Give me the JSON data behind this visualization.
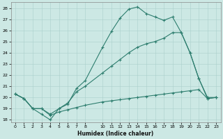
{
  "xlabel": "Humidex (Indice chaleur)",
  "ylabel": "",
  "background_color": "#cce8e4",
  "line_color": "#2d7d6e",
  "grid_color": "#aacfcb",
  "xlim": [
    -0.5,
    23.5
  ],
  "ylim": [
    17.8,
    28.5
  ],
  "xticks": [
    0,
    1,
    2,
    3,
    4,
    5,
    6,
    7,
    8,
    10,
    11,
    12,
    13,
    14,
    15,
    16,
    17,
    18,
    19,
    20,
    21,
    22,
    23
  ],
  "yticks": [
    18,
    19,
    20,
    21,
    22,
    23,
    24,
    25,
    26,
    27,
    28
  ],
  "line1_x": [
    0,
    1,
    2,
    3,
    4,
    5,
    6,
    7,
    8,
    10,
    11,
    12,
    13,
    14,
    15,
    16,
    17,
    18,
    19,
    20,
    21,
    22,
    23
  ],
  "line1_y": [
    20.3,
    19.9,
    19.0,
    18.5,
    18.0,
    19.0,
    19.4,
    20.8,
    21.5,
    24.5,
    25.9,
    27.1,
    27.9,
    28.1,
    27.5,
    27.2,
    26.9,
    27.2,
    25.8,
    24.0,
    21.7,
    19.9,
    20.0
  ],
  "line2_x": [
    0,
    1,
    2,
    3,
    4,
    5,
    6,
    7,
    8,
    10,
    11,
    12,
    13,
    14,
    15,
    16,
    17,
    18,
    19,
    20,
    21,
    22,
    23
  ],
  "line2_y": [
    20.3,
    19.9,
    19.0,
    19.0,
    18.5,
    19.0,
    19.5,
    20.5,
    21.0,
    22.2,
    22.8,
    23.4,
    24.0,
    24.5,
    24.8,
    25.0,
    25.3,
    25.8,
    25.8,
    24.0,
    21.7,
    20.0,
    20.0
  ],
  "line3_x": [
    0,
    1,
    2,
    3,
    4,
    5,
    6,
    7,
    8,
    10,
    11,
    12,
    13,
    14,
    15,
    16,
    17,
    18,
    19,
    20,
    21,
    22,
    23
  ],
  "line3_y": [
    20.3,
    19.9,
    19.0,
    19.0,
    18.4,
    18.7,
    18.9,
    19.1,
    19.3,
    19.6,
    19.7,
    19.8,
    19.9,
    20.0,
    20.1,
    20.2,
    20.3,
    20.4,
    20.5,
    20.6,
    20.7,
    19.9,
    20.0
  ]
}
